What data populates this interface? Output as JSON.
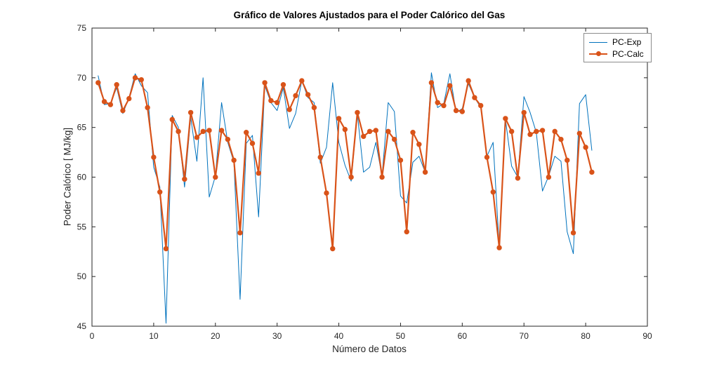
{
  "chart_data": {
    "type": "line",
    "title": "Gráfico de Valores Ajustados para el Poder Calórico del Gas",
    "xlabel": "Número de Datos",
    "ylabel": "Poder Calórico [ MJ/kg]",
    "xlim": [
      0,
      90
    ],
    "ylim": [
      45,
      75
    ],
    "xticks": [
      0,
      10,
      20,
      30,
      40,
      50,
      60,
      70,
      80,
      90
    ],
    "yticks": [
      45,
      50,
      55,
      60,
      65,
      70,
      75
    ],
    "grid": false,
    "legend_position": "top-right",
    "axis_color": "#262626",
    "x": [
      1,
      2,
      3,
      4,
      5,
      6,
      7,
      8,
      9,
      10,
      11,
      12,
      13,
      14,
      15,
      16,
      17,
      18,
      19,
      20,
      21,
      22,
      23,
      24,
      25,
      26,
      27,
      28,
      29,
      30,
      31,
      32,
      33,
      34,
      35,
      36,
      37,
      38,
      39,
      40,
      41,
      42,
      43,
      44,
      45,
      46,
      47,
      48,
      49,
      50,
      51,
      52,
      53,
      54,
      55,
      56,
      57,
      58,
      59,
      60,
      61,
      62,
      63,
      64,
      65,
      66,
      67,
      68,
      69,
      70,
      71,
      72,
      73,
      74,
      75,
      76,
      77,
      78,
      79,
      80,
      81
    ],
    "series": [
      {
        "name": "PC-Exp",
        "color": "#0072BD",
        "marker": "none",
        "line_width": 1,
        "values": [
          70.2,
          67.3,
          67.4,
          69.0,
          66.4,
          68.0,
          70.4,
          69.2,
          68.5,
          61.0,
          59.0,
          45.3,
          66.2,
          65.0,
          59.0,
          66.0,
          61.6,
          70.0,
          58.0,
          60.1,
          67.5,
          63.5,
          61.5,
          47.7,
          63.4,
          64.2,
          56.0,
          69.2,
          67.5,
          66.7,
          69.0,
          64.9,
          66.4,
          69.7,
          68.0,
          67.5,
          61.4,
          63.0,
          69.5,
          63.5,
          61.2,
          59.6,
          66.4,
          60.5,
          61.0,
          63.5,
          60.1,
          67.5,
          66.6,
          58.1,
          57.4,
          61.5,
          62.1,
          60.5,
          70.5,
          67.0,
          67.4,
          70.4,
          66.5,
          66.9,
          69.4,
          68.0,
          67.0,
          62.1,
          63.5,
          52.9,
          65.8,
          61.1,
          60.0,
          68.1,
          66.5,
          64.5,
          58.6,
          60.1,
          62.1,
          61.6,
          54.5,
          52.3,
          67.4,
          68.3,
          62.7
        ]
      },
      {
        "name": "PC-Calc",
        "color": "#D95319",
        "marker": "o",
        "line_width": 2.2,
        "values": [
          69.5,
          67.6,
          67.3,
          69.3,
          66.7,
          67.9,
          70.0,
          69.8,
          67.0,
          62.0,
          58.5,
          52.8,
          65.8,
          64.6,
          59.8,
          66.5,
          64.0,
          64.6,
          64.7,
          60.0,
          64.7,
          63.8,
          61.7,
          54.4,
          64.5,
          63.4,
          60.4,
          69.5,
          67.7,
          67.5,
          69.3,
          66.8,
          68.2,
          69.7,
          68.3,
          67.0,
          62.0,
          58.4,
          52.8,
          65.9,
          64.8,
          60.0,
          66.5,
          64.1,
          64.6,
          64.7,
          60.0,
          64.6,
          63.8,
          61.7,
          54.5,
          64.5,
          63.3,
          60.5,
          69.5,
          67.5,
          67.2,
          69.2,
          66.7,
          66.6,
          69.7,
          68.0,
          67.2,
          62.0,
          58.5,
          52.9,
          65.9,
          64.6,
          59.9,
          66.5,
          64.3,
          64.6,
          64.7,
          60.0,
          64.6,
          63.8,
          61.7,
          54.4,
          64.4,
          63.0,
          60.5
        ]
      }
    ]
  }
}
